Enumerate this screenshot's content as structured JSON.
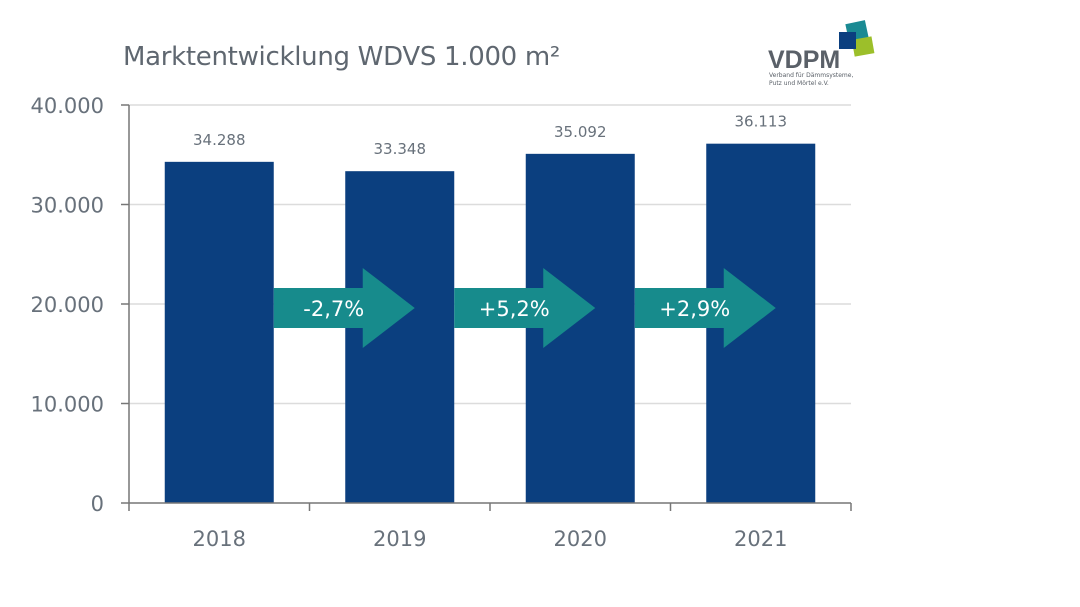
{
  "chart_data": {
    "type": "bar",
    "title": "Marktentwicklung WDVS 1.000 m²",
    "categories": [
      "2018",
      "2019",
      "2020",
      "2021"
    ],
    "values": [
      34288,
      33348,
      35092,
      36113
    ],
    "data_labels": [
      "34.288",
      "33.348",
      "35.092",
      "36.113"
    ],
    "change_labels": [
      "-2,7%",
      "+5,2%",
      "+2,9%"
    ],
    "ylim": [
      0,
      40000
    ],
    "yticks": [
      0,
      10000,
      20000,
      30000,
      40000
    ],
    "ytick_labels": [
      "0",
      "10.000",
      "20.000",
      "30.000",
      "40.000"
    ],
    "xlabel": "",
    "ylabel": "",
    "grid": true,
    "colors": {
      "bar": "#0b3f7f",
      "arrow": "#178b8c",
      "text": "#68717b",
      "grid": "#dcdcdc"
    }
  },
  "logo": {
    "name": "VDPM",
    "subtitle_line1": "Verband für Dämmsysteme,",
    "subtitle_line2": "Putz und Mörtel e.V."
  }
}
